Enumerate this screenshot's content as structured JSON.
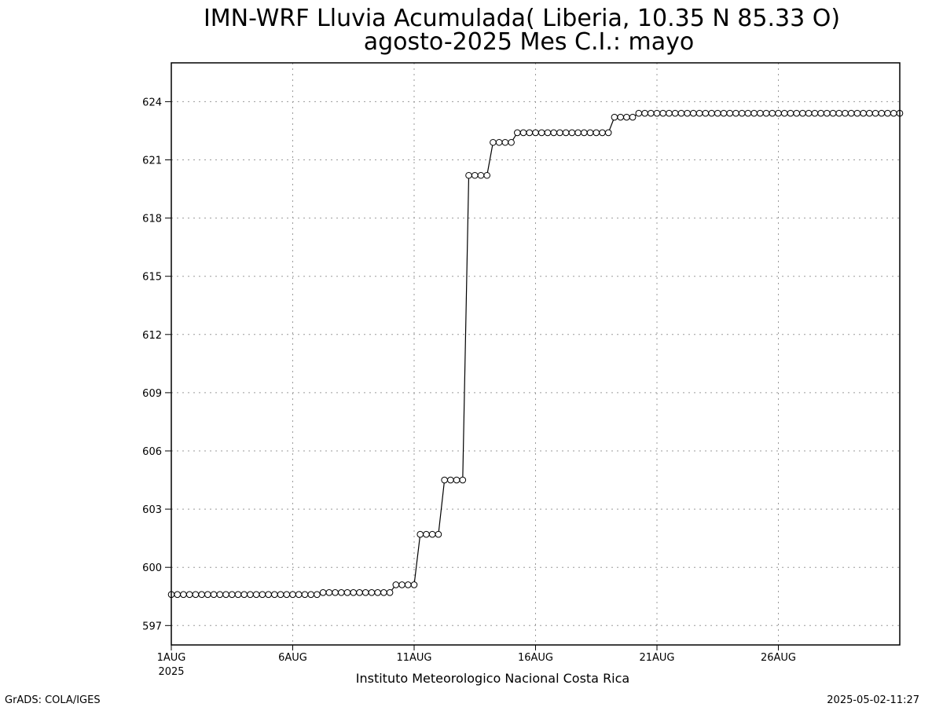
{
  "chart_data": {
    "type": "line",
    "title": "IMN-WRF  Lluvia Acumulada( Liberia, 10.35  N 85.33  O)",
    "subtitle": "agosto-2025 Mes C.I.: mayo",
    "xlabel": "Instituto Meteorologico Nacional Costa Rica",
    "ylabel": "",
    "x_ticks": [
      "1AUG",
      "6AUG",
      "11AUG",
      "16AUG",
      "21AUG",
      "26AUG"
    ],
    "x_tick_days": [
      1,
      6,
      11,
      16,
      21,
      26
    ],
    "x_year_label": "2025",
    "xlim_days": [
      1,
      31
    ],
    "ylim": [
      596,
      626
    ],
    "y_ticks": [
      597,
      600,
      603,
      606,
      609,
      612,
      615,
      618,
      621,
      624
    ],
    "grid": true,
    "marker": "open-circle",
    "series": [
      {
        "values_step": "6-hourly from 1AUG 00Z",
        "values": [
          598.6,
          598.6,
          598.6,
          598.6,
          598.6,
          598.6,
          598.6,
          598.6,
          598.6,
          598.6,
          598.6,
          598.6,
          598.6,
          598.6,
          598.6,
          598.6,
          598.6,
          598.6,
          598.6,
          598.6,
          598.6,
          598.6,
          598.6,
          598.6,
          598.6,
          598.7,
          598.7,
          598.7,
          598.7,
          598.7,
          598.7,
          598.7,
          598.7,
          598.7,
          598.7,
          598.7,
          598.7,
          599.1,
          599.1,
          599.1,
          599.1,
          601.7,
          601.7,
          601.7,
          601.7,
          604.5,
          604.5,
          604.5,
          604.5,
          620.2,
          620.2,
          620.2,
          620.2,
          621.9,
          621.9,
          621.9,
          621.9,
          622.4,
          622.4,
          622.4,
          622.4,
          622.4,
          622.4,
          622.4,
          622.4,
          622.4,
          622.4,
          622.4,
          622.4,
          622.4,
          622.4,
          622.4,
          622.4,
          623.2,
          623.2,
          623.2,
          623.2,
          623.4,
          623.4,
          623.4,
          623.4,
          623.4,
          623.4,
          623.4,
          623.4,
          623.4,
          623.4,
          623.4,
          623.4,
          623.4,
          623.4,
          623.4,
          623.4,
          623.4,
          623.4,
          623.4,
          623.4,
          623.4,
          623.4,
          623.4,
          623.4,
          623.4,
          623.4,
          623.4,
          623.4,
          623.4,
          623.4,
          623.4,
          623.4,
          623.4,
          623.4,
          623.4,
          623.4,
          623.4,
          623.4,
          623.4,
          623.4,
          623.4,
          623.4,
          623.4,
          623.4
        ]
      }
    ]
  },
  "footer": {
    "left": "GrADS: COLA/IGES",
    "right": "2025-05-02-11:27"
  }
}
